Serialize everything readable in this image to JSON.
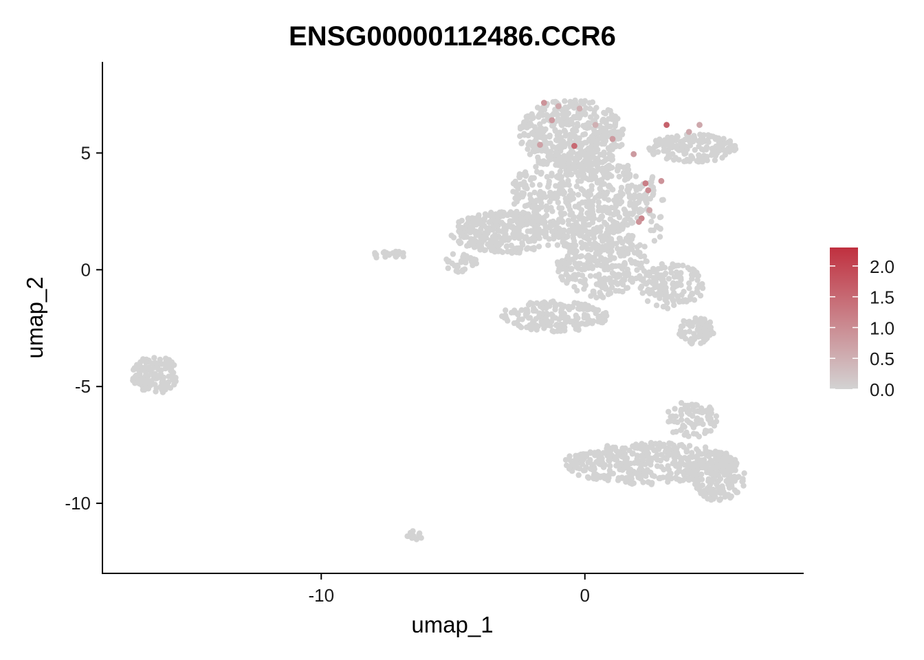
{
  "chart_data": {
    "type": "scatter",
    "title": "ENSG00000112486.CCR6",
    "xlabel": "umap_1",
    "ylabel": "umap_2",
    "xlim": [
      -18.3,
      8.3
    ],
    "ylim": [
      -13.0,
      8.9
    ],
    "x_ticks": [
      {
        "value": -10,
        "label": "-10"
      },
      {
        "value": 0,
        "label": "0"
      }
    ],
    "y_ticks": [
      {
        "value": 5,
        "label": "5"
      },
      {
        "value": 0,
        "label": "0"
      },
      {
        "value": -5,
        "label": "-5"
      },
      {
        "value": -10,
        "label": "-10"
      }
    ],
    "grid": false,
    "legend": {
      "placement": "right",
      "type": "colorbar",
      "min": 0.0,
      "max": 2.3,
      "ticks": [
        {
          "value": 0.0,
          "label": "0.0"
        },
        {
          "value": 0.5,
          "label": "0.5"
        },
        {
          "value": 1.0,
          "label": "1.0"
        },
        {
          "value": 1.5,
          "label": "1.5"
        },
        {
          "value": 2.0,
          "label": "2.0"
        }
      ],
      "low_color": "#D3D3D3",
      "high_color": "#C0303F"
    },
    "clusters": [
      {
        "kind": "ellipse",
        "cx": -16.3,
        "cy": -4.5,
        "rx": 0.9,
        "ry": 0.8,
        "n": 130
      },
      {
        "kind": "ellipse",
        "cx": -7.5,
        "cy": 0.65,
        "rx": 0.7,
        "ry": 0.2,
        "n": 20
      },
      {
        "kind": "ellipse",
        "cx": -6.5,
        "cy": -11.35,
        "rx": 0.45,
        "ry": 0.2,
        "n": 12
      },
      {
        "kind": "ellipse",
        "cx": -0.5,
        "cy": 5.8,
        "rx": 2.0,
        "ry": 1.5,
        "n": 420
      },
      {
        "kind": "ellipse",
        "cx": -0.2,
        "cy": 3.2,
        "rx": 2.6,
        "ry": 1.9,
        "n": 520
      },
      {
        "kind": "ellipse",
        "cx": -3.0,
        "cy": 1.6,
        "rx": 2.1,
        "ry": 0.9,
        "n": 320
      },
      {
        "kind": "ellipse",
        "cx": 0.6,
        "cy": 0.4,
        "rx": 1.8,
        "ry": 1.6,
        "n": 320
      },
      {
        "kind": "ellipse",
        "cx": -1.2,
        "cy": -2.0,
        "rx": 2.1,
        "ry": 0.65,
        "n": 200
      },
      {
        "kind": "ellipse",
        "cx": -4.7,
        "cy": 0.3,
        "rx": 0.6,
        "ry": 0.45,
        "n": 30
      },
      {
        "kind": "ellipse",
        "cx": 3.3,
        "cy": -0.7,
        "rx": 1.2,
        "ry": 1.0,
        "n": 130
      },
      {
        "kind": "ellipse",
        "cx": 4.2,
        "cy": -2.6,
        "rx": 0.7,
        "ry": 0.6,
        "n": 70
      },
      {
        "kind": "ellipse",
        "cx": 4.1,
        "cy": 5.2,
        "rx": 1.7,
        "ry": 0.6,
        "n": 170
      },
      {
        "kind": "ellipse",
        "cx": 2.7,
        "cy": 2.7,
        "rx": 0.35,
        "ry": 1.5,
        "n": 30
      },
      {
        "kind": "ellipse",
        "cx": 2.5,
        "cy": -8.3,
        "rx": 3.3,
        "ry": 0.9,
        "n": 420
      },
      {
        "kind": "ellipse",
        "cx": 5.0,
        "cy": -8.9,
        "rx": 1.1,
        "ry": 1.0,
        "n": 150
      },
      {
        "kind": "ellipse",
        "cx": 4.0,
        "cy": -6.4,
        "rx": 1.0,
        "ry": 0.8,
        "n": 80
      }
    ],
    "expressing_points": [
      {
        "x": 3.1,
        "y": 6.2,
        "value": 1.6
      },
      {
        "x": -0.4,
        "y": 5.3,
        "value": 1.5
      },
      {
        "x": 2.3,
        "y": 3.7,
        "value": 1.2
      },
      {
        "x": 2.4,
        "y": 3.4,
        "value": 1.0
      },
      {
        "x": 2.15,
        "y": 2.2,
        "value": 1.1
      },
      {
        "x": 2.05,
        "y": 2.05,
        "value": 0.9
      },
      {
        "x": 2.9,
        "y": 3.8,
        "value": 0.9
      },
      {
        "x": -1.55,
        "y": 7.15,
        "value": 0.9
      },
      {
        "x": -1.25,
        "y": 6.4,
        "value": 0.8
      },
      {
        "x": -1.7,
        "y": 5.35,
        "value": 0.7
      },
      {
        "x": 1.05,
        "y": 5.6,
        "value": 0.8
      },
      {
        "x": 1.85,
        "y": 4.95,
        "value": 0.8
      },
      {
        "x": -1.0,
        "y": 7.0,
        "value": 0.6
      },
      {
        "x": 4.35,
        "y": 6.2,
        "value": 0.6
      },
      {
        "x": 3.95,
        "y": 5.9,
        "value": 0.6
      },
      {
        "x": -0.2,
        "y": 6.9,
        "value": 0.5
      },
      {
        "x": 2.45,
        "y": 2.55,
        "value": 0.6
      },
      {
        "x": 0.4,
        "y": 6.2,
        "value": 0.5
      }
    ]
  }
}
